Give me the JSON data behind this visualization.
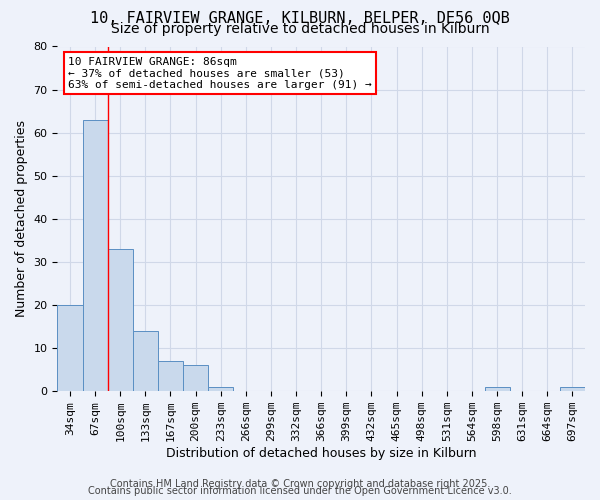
{
  "title_line1": "10, FAIRVIEW GRANGE, KILBURN, BELPER, DE56 0QB",
  "title_line2": "Size of property relative to detached houses in Kilburn",
  "xlabel": "Distribution of detached houses by size in Kilburn",
  "ylabel": "Number of detached properties",
  "bar_values": [
    20,
    63,
    33,
    14,
    7,
    6,
    1,
    0,
    0,
    0,
    0,
    0,
    0,
    0,
    0,
    0,
    0,
    1,
    0,
    0,
    1
  ],
  "categories": [
    "34sqm",
    "67sqm",
    "100sqm",
    "133sqm",
    "167sqm",
    "200sqm",
    "233sqm",
    "266sqm",
    "299sqm",
    "332sqm",
    "366sqm",
    "399sqm",
    "432sqm",
    "465sqm",
    "498sqm",
    "531sqm",
    "564sqm",
    "598sqm",
    "631sqm",
    "664sqm",
    "697sqm"
  ],
  "bar_color": "#c9d9ec",
  "bar_edge_color": "#5a8fc3",
  "grid_color": "#d0d8e8",
  "background_color": "#eef2fa",
  "annotation_text": "10 FAIRVIEW GRANGE: 86sqm\n← 37% of detached houses are smaller (53)\n63% of semi-detached houses are larger (91) →",
  "annotation_box_color": "white",
  "annotation_box_edge": "red",
  "red_line_x": 1.5,
  "ylim": [
    0,
    80
  ],
  "yticks": [
    0,
    10,
    20,
    30,
    40,
    50,
    60,
    70,
    80
  ],
  "footer_line1": "Contains HM Land Registry data © Crown copyright and database right 2025.",
  "footer_line2": "Contains public sector information licensed under the Open Government Licence v3.0.",
  "title_fontsize": 11,
  "subtitle_fontsize": 10,
  "axis_label_fontsize": 9,
  "tick_fontsize": 8,
  "annotation_fontsize": 8,
  "footer_fontsize": 7
}
